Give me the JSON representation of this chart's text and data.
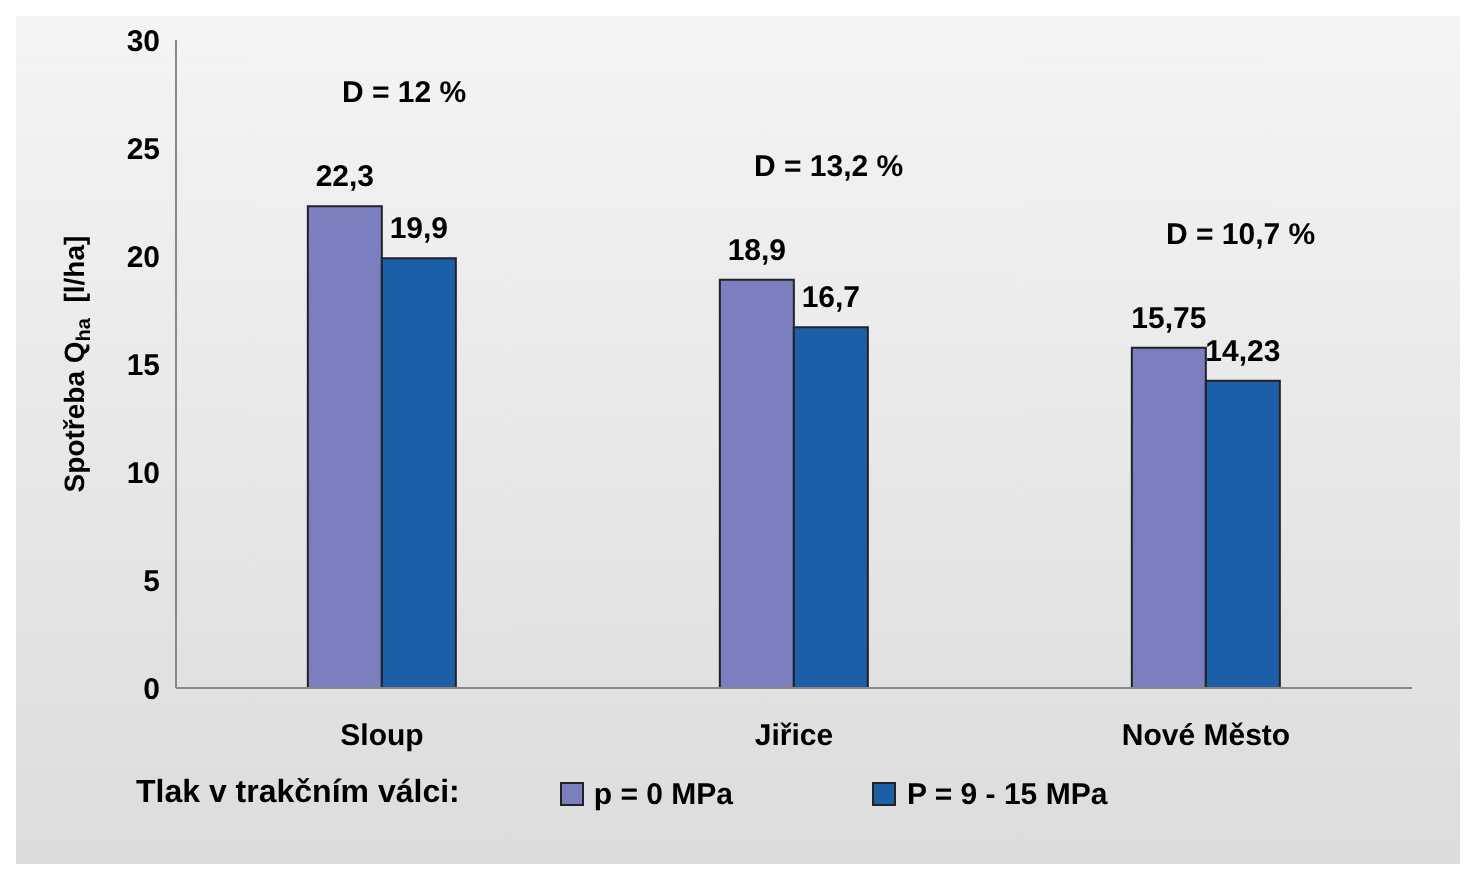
{
  "chart_data": {
    "type": "bar",
    "ylabel": "Spotřeba Q$_{ha}$  [l/ha]",
    "legend_title": "Tlak v trakčním válci:",
    "categories": [
      "Sloup",
      "Jiřice",
      "Nové Město"
    ],
    "series": [
      {
        "name": "p = 0 MPa",
        "color": "#7b7fc0",
        "values": [
          22.3,
          18.9,
          15.75
        ]
      },
      {
        "name": "P = 9 - 15 MPa",
        "color": "#1a5fa8",
        "values": [
          19.9,
          16.7,
          14.23
        ]
      }
    ],
    "value_labels": [
      [
        "22,3",
        "18,9",
        "15,75"
      ],
      [
        "19,9",
        "16,7",
        "14,23"
      ]
    ],
    "ylim": [
      0,
      30
    ],
    "yticks": [
      0,
      5,
      10,
      15,
      20,
      25,
      30
    ],
    "grid": false,
    "legend": "bottom",
    "annotations": [
      "D = 12 %",
      "D = 13,2 %",
      "D = 10,7 %"
    ]
  }
}
